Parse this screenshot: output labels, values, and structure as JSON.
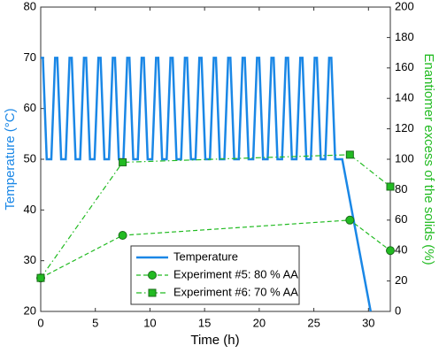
{
  "chart_data": {
    "type": "line",
    "xlabel": "Time (h)",
    "ylabel": "Temperature (°C)",
    "y2label": "Enantiomer excess of the solids (%)",
    "xlim": [
      0,
      32
    ],
    "xticks": [
      0,
      5,
      10,
      15,
      20,
      25,
      30
    ],
    "ylim": [
      20,
      80
    ],
    "yticks": [
      20,
      30,
      40,
      50,
      60,
      70,
      80
    ],
    "y2lim": [
      0,
      200
    ],
    "y2ticks": [
      0,
      20,
      40,
      60,
      80,
      100,
      120,
      140,
      160,
      180,
      200
    ],
    "ycolor": "#1a87e6",
    "y2color": "#22bb22",
    "grid": false,
    "legend": "south",
    "series": [
      {
        "name": "Temperature",
        "color": "#1a87e6",
        "marker": "none",
        "dash": "solid",
        "axis": "y",
        "x": [
          0,
          0.2,
          0.55,
          0.97,
          1.32,
          1.52,
          1.87,
          2.29,
          2.64,
          2.84,
          3.19,
          3.61,
          3.96,
          4.16,
          4.51,
          4.93,
          5.28,
          5.48,
          5.83,
          6.25,
          6.6,
          6.8,
          7.15,
          7.57,
          7.92,
          8.12,
          8.47,
          8.89,
          9.24,
          9.44,
          9.79,
          10.21,
          10.56,
          10.76,
          11.11,
          11.53,
          11.88,
          12.08,
          12.43,
          12.85,
          13.2,
          13.4,
          13.75,
          14.17,
          14.52,
          14.72,
          15.07,
          15.49,
          15.84,
          16.04,
          16.39,
          16.81,
          17.16,
          17.36,
          17.71,
          18.13,
          18.48,
          18.68,
          19.03,
          19.45,
          19.8,
          20,
          20.35,
          20.77,
          21.12,
          21.32,
          21.67,
          22.09,
          22.44,
          22.64,
          22.99,
          23.41,
          23.76,
          23.96,
          24.31,
          24.73,
          25.08,
          25.28,
          25.63,
          26.05,
          26.4,
          26.6,
          26.95,
          27.6,
          30.2
        ],
        "values": [
          70,
          70,
          50,
          50,
          70,
          70,
          50,
          50,
          70,
          70,
          50,
          50,
          70,
          70,
          50,
          50,
          70,
          70,
          50,
          50,
          70,
          70,
          50,
          50,
          70,
          70,
          50,
          50,
          70,
          70,
          50,
          50,
          70,
          70,
          50,
          50,
          70,
          70,
          50,
          50,
          70,
          70,
          50,
          50,
          70,
          70,
          50,
          50,
          70,
          70,
          50,
          50,
          70,
          70,
          50,
          50,
          70,
          70,
          50,
          50,
          70,
          70,
          50,
          50,
          70,
          70,
          50,
          50,
          70,
          70,
          50,
          50,
          70,
          70,
          50,
          50,
          70,
          70,
          50,
          50,
          70,
          70,
          50,
          50,
          20
        ]
      },
      {
        "name": "Experiment #5: 80 % AA",
        "color": "#22bb22",
        "marker": "circle",
        "dash": "dashed",
        "axis": "y2",
        "x": [
          0,
          7.5,
          28.3,
          32
        ],
        "values": [
          22,
          50,
          60,
          40
        ]
      },
      {
        "name": "Experiment #6: 70 % AA",
        "color": "#22bb22",
        "marker": "square",
        "dash": "dashdot",
        "axis": "y2",
        "x": [
          0,
          7.5,
          28.3,
          32
        ],
        "values": [
          22,
          98,
          103,
          82
        ]
      }
    ]
  }
}
